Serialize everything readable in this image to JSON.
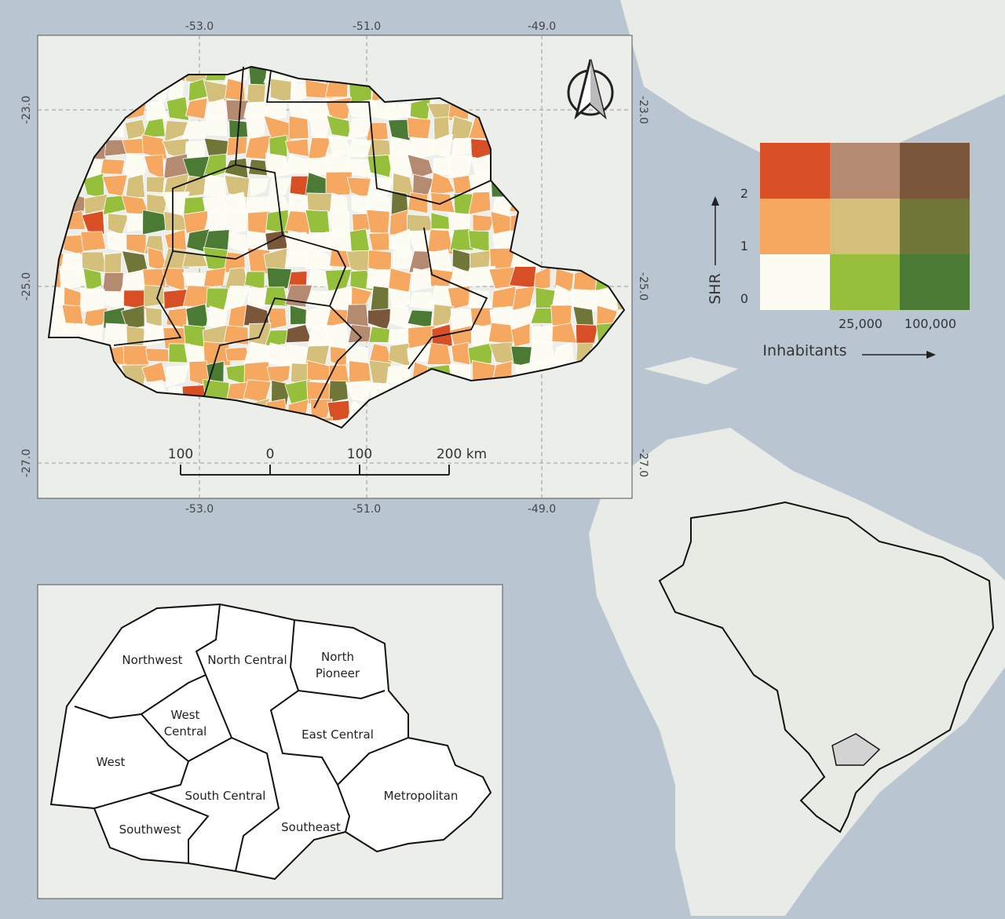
{
  "main_map": {
    "top_lon_labels": [
      "-53.0",
      "-51.0",
      "-49.0"
    ],
    "bottom_lon_labels": [
      "-53.0",
      "-51.0",
      "-49.0"
    ],
    "left_lat_labels": [
      "-23.0",
      "-25.0",
      "-27.0"
    ],
    "right_lat_labels": [
      "-23.0",
      "-25.0",
      "-27.0"
    ],
    "scale_bar": [
      "100",
      "0",
      "100",
      "200 km"
    ]
  },
  "legend": {
    "y_axis_title": "SHR",
    "y_labels": [
      "2",
      "1",
      "0"
    ],
    "x_axis_title": "Inhabitants",
    "x_labels": [
      "25,000",
      "100,000"
    ],
    "colors": [
      [
        "#d94f25",
        "#b48a70",
        "#7a573a"
      ],
      [
        "#f6a861",
        "#d4c07a",
        "#6f7637"
      ],
      [
        "#fdfcf3",
        "#96c03c",
        "#4a7a34"
      ]
    ]
  },
  "regions_map": {
    "regions": [
      {
        "lines": [
          "Northwest"
        ]
      },
      {
        "lines": [
          "North Central"
        ]
      },
      {
        "lines": [
          "North",
          "Pioneer"
        ]
      },
      {
        "lines": [
          "West",
          "Central"
        ]
      },
      {
        "lines": [
          "East Central"
        ]
      },
      {
        "lines": [
          "West"
        ]
      },
      {
        "lines": [
          "South Central"
        ]
      },
      {
        "lines": [
          "Metropolitan"
        ]
      },
      {
        "lines": [
          "Southwest"
        ]
      },
      {
        "lines": [
          "Southeast"
        ]
      }
    ]
  }
}
